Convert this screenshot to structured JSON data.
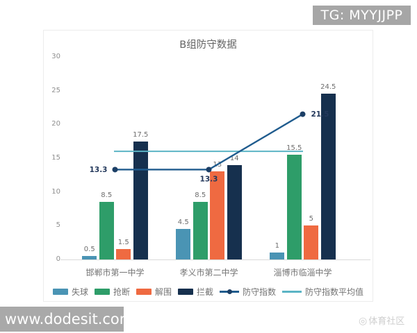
{
  "overlays": {
    "tg_badge": "TG: MYYJJPP",
    "site_badge": "www.dodesit.com",
    "community_watermark": "体育社区"
  },
  "chart_data": {
    "type": "bar",
    "title": "B组防守数据",
    "categories": [
      "邯郸市第一中学",
      "孝义市第二中学",
      "淄博市临淄中学"
    ],
    "series": [
      {
        "name": "失球",
        "kind": "bar",
        "color": "#4a94b4",
        "values": [
          0.5,
          4.5,
          1
        ]
      },
      {
        "name": "抢断",
        "kind": "bar",
        "color": "#2e9d69",
        "values": [
          8.5,
          8.5,
          15.5
        ]
      },
      {
        "name": "解围",
        "kind": "bar",
        "color": "#ef6a41",
        "values": [
          1.5,
          13,
          5
        ]
      },
      {
        "name": "拦截",
        "kind": "bar",
        "color": "#16304e",
        "values": [
          17.5,
          14,
          24.5
        ]
      },
      {
        "name": "防守指数",
        "kind": "line",
        "color": "#205c8e",
        "marker_color": "#1c3f66",
        "values": [
          13.3,
          13.3,
          21.5
        ],
        "label_color": "#24395c"
      },
      {
        "name": "防守指数平均值",
        "kind": "avg-line",
        "color": "#5bb4c5",
        "value": 16
      }
    ],
    "ylim": [
      0,
      30
    ],
    "yticks": [
      0,
      5,
      10,
      15,
      20,
      25,
      30
    ],
    "legend_position": "bottom",
    "grid": false
  }
}
